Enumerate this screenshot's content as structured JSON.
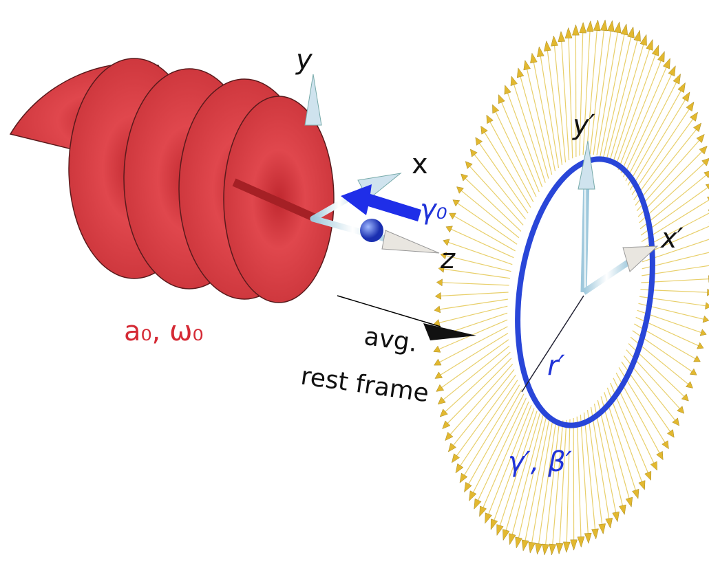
{
  "lab_axes": {
    "y": "y",
    "x": "x",
    "z": "z"
  },
  "beam": {
    "gamma": "γ₀",
    "params": "a₀, ω₀"
  },
  "frame": {
    "caption": [
      "avg.",
      "rest frame"
    ]
  },
  "ring": {
    "y": "y′",
    "x": "x′",
    "radius": "r′",
    "params": "γ′, β′"
  }
}
